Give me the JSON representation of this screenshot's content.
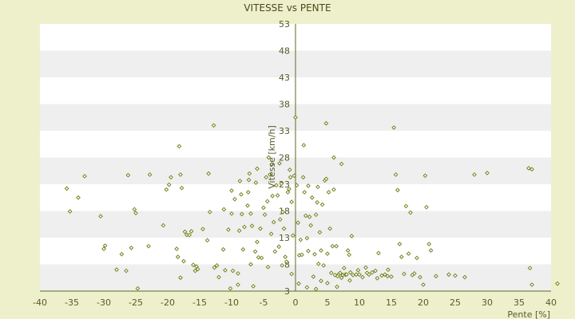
{
  "colors": {
    "page_background": "#eef0cc",
    "band_light": "#ffffff",
    "band_dark": "#efefef",
    "axis": "#5b6b1e",
    "marker_fill": "#ffffff",
    "marker_stroke": "#6b7a10",
    "text": "#4a4a1a"
  },
  "chart_data": {
    "type": "scatter",
    "title": "VITESSE vs PENTE",
    "xlabel": "Pente [%]",
    "ylabel": "Vitesse [km/h]",
    "xlim": [
      -40,
      40
    ],
    "ylim": [
      3,
      53
    ],
    "x_ticks": [
      -40,
      -35,
      -30,
      -25,
      -20,
      -15,
      -10,
      -5,
      0,
      5,
      10,
      15,
      20,
      25,
      30,
      35,
      40
    ],
    "y_ticks": [
      3,
      8,
      13,
      18,
      23,
      28,
      33,
      38,
      43,
      48,
      53
    ],
    "grid": "alternating horizontal bands",
    "legend": "none",
    "marker": "small diamond",
    "points": [
      [
        -35.8,
        22.2
      ],
      [
        -35.3,
        17.9
      ],
      [
        -34.0,
        20.5
      ],
      [
        -33.0,
        24.5
      ],
      [
        -30.5,
        17.0
      ],
      [
        -30.0,
        10.9
      ],
      [
        -29.8,
        11.5
      ],
      [
        -28.0,
        7.0
      ],
      [
        -27.2,
        9.9
      ],
      [
        -26.5,
        6.8
      ],
      [
        -26.2,
        24.7
      ],
      [
        -25.7,
        11.1
      ],
      [
        -25.2,
        18.3
      ],
      [
        -25.0,
        17.6
      ],
      [
        -24.7,
        3.5
      ],
      [
        -23.0,
        11.4
      ],
      [
        -22.8,
        24.8
      ],
      [
        -20.7,
        15.3
      ],
      [
        -20.2,
        22.0
      ],
      [
        -19.8,
        22.9
      ],
      [
        -19.5,
        24.3
      ],
      [
        -18.6,
        10.9
      ],
      [
        -18.4,
        9.4
      ],
      [
        -18.0,
        24.8
      ],
      [
        -18.2,
        30.1
      ],
      [
        -18.0,
        5.5
      ],
      [
        -17.8,
        22.3
      ],
      [
        -17.5,
        8.6
      ],
      [
        -17.3,
        14.1
      ],
      [
        -17.0,
        13.5
      ],
      [
        -16.6,
        13.5
      ],
      [
        -16.3,
        14.2
      ],
      [
        -16.0,
        7.9
      ],
      [
        -15.7,
        6.8
      ],
      [
        -15.5,
        7.6
      ],
      [
        -15.3,
        7.1
      ],
      [
        -14.5,
        14.6
      ],
      [
        -13.8,
        12.5
      ],
      [
        -13.6,
        25.0
      ],
      [
        -13.4,
        17.8
      ],
      [
        -12.8,
        34.0
      ],
      [
        -12.7,
        7.4
      ],
      [
        -12.3,
        7.8
      ],
      [
        -12.0,
        5.6
      ],
      [
        -11.3,
        10.8
      ],
      [
        -11.0,
        6.9
      ],
      [
        -10.5,
        14.5
      ],
      [
        -10.0,
        17.5
      ],
      [
        -9.8,
        6.8
      ],
      [
        -9.5,
        20.2
      ],
      [
        -9.0,
        6.3
      ],
      [
        -8.8,
        14.3
      ],
      [
        -8.5,
        21.1
      ],
      [
        -8.4,
        17.4
      ],
      [
        -8.0,
        15.0
      ],
      [
        -7.5,
        19.0
      ],
      [
        -7.0,
        8.0
      ],
      [
        -7.4,
        21.5
      ],
      [
        -7.3,
        23.8
      ],
      [
        -7.2,
        25.0
      ],
      [
        -7.0,
        17.5
      ],
      [
        -6.8,
        15.2
      ],
      [
        -6.6,
        3.9
      ],
      [
        -6.2,
        23.3
      ],
      [
        -6.0,
        12.2
      ],
      [
        -5.8,
        9.3
      ],
      [
        -5.5,
        14.7
      ],
      [
        -5.3,
        9.2
      ],
      [
        -5.0,
        18.6
      ],
      [
        -4.8,
        17.3
      ],
      [
        -4.6,
        24.3
      ],
      [
        -4.4,
        19.8
      ],
      [
        -4.2,
        28.0
      ],
      [
        -4.0,
        24.8
      ],
      [
        -3.8,
        13.7
      ],
      [
        -3.6,
        20.8
      ],
      [
        -3.4,
        15.9
      ],
      [
        -3.2,
        10.4
      ],
      [
        -3.0,
        22.8
      ],
      [
        -2.8,
        20.9
      ],
      [
        -2.6,
        11.3
      ],
      [
        -2.4,
        16.4
      ],
      [
        -2.2,
        23.1
      ],
      [
        -2.0,
        17.8
      ],
      [
        -1.8,
        14.7
      ],
      [
        -1.6,
        9.4
      ],
      [
        -1.4,
        8.5
      ],
      [
        -1.2,
        21.5
      ],
      [
        -1.0,
        22.1
      ],
      [
        -0.8,
        24.3
      ],
      [
        -0.6,
        19.7
      ],
      [
        -0.4,
        13.4
      ],
      [
        -0.2,
        24.6
      ],
      [
        0.2,
        22.8
      ],
      [
        0.4,
        15.8
      ],
      [
        0.6,
        9.7
      ],
      [
        0.8,
        12.6
      ],
      [
        1.0,
        9.8
      ],
      [
        1.2,
        24.3
      ],
      [
        1.4,
        21.5
      ],
      [
        1.6,
        17.1
      ],
      [
        1.8,
        12.9
      ],
      [
        2.0,
        10.5
      ],
      [
        2.2,
        16.9
      ],
      [
        2.4,
        15.3
      ],
      [
        2.6,
        20.5
      ],
      [
        2.8,
        5.7
      ],
      [
        3.0,
        9.9
      ],
      [
        3.2,
        17.3
      ],
      [
        3.4,
        19.6
      ],
      [
        3.6,
        8.1
      ],
      [
        3.8,
        14.0
      ],
      [
        4.0,
        10.6
      ],
      [
        4.2,
        19.2
      ],
      [
        4.4,
        7.8
      ],
      [
        4.6,
        23.7
      ],
      [
        4.8,
        24.0
      ],
      [
        5.0,
        10.0
      ],
      [
        5.2,
        21.5
      ],
      [
        5.4,
        14.7
      ],
      [
        5.6,
        6.4
      ],
      [
        5.8,
        11.4
      ],
      [
        6.0,
        22.0
      ],
      [
        6.2,
        6.0
      ],
      [
        6.4,
        11.4
      ],
      [
        6.6,
        5.8
      ],
      [
        6.8,
        6.2
      ],
      [
        7.0,
        6.4
      ],
      [
        7.2,
        5.5
      ],
      [
        7.4,
        6.0
      ],
      [
        7.6,
        7.3
      ],
      [
        7.8,
        6.1
      ],
      [
        8.0,
        6.1
      ],
      [
        8.2,
        10.6
      ],
      [
        8.4,
        9.8
      ],
      [
        8.6,
        6.5
      ],
      [
        8.8,
        13.3
      ],
      [
        9.0,
        6.0
      ],
      [
        9.5,
        6.1
      ],
      [
        10.0,
        6.1
      ],
      [
        10.5,
        5.6
      ],
      [
        11.0,
        7.4
      ],
      [
        11.5,
        6.1
      ],
      [
        12.0,
        6.5
      ],
      [
        12.5,
        6.8
      ],
      [
        13.0,
        10.1
      ],
      [
        13.5,
        5.9
      ],
      [
        14.0,
        6.1
      ],
      [
        14.5,
        7.0
      ],
      [
        15.0,
        5.7
      ],
      [
        15.4,
        33.6
      ],
      [
        15.7,
        24.8
      ],
      [
        16.0,
        21.9
      ],
      [
        16.3,
        11.8
      ],
      [
        16.6,
        9.4
      ],
      [
        17.0,
        6.2
      ],
      [
        17.3,
        18.9
      ],
      [
        17.7,
        10.0
      ],
      [
        18.0,
        17.7
      ],
      [
        18.3,
        6.0
      ],
      [
        18.6,
        6.3
      ],
      [
        19.0,
        9.2
      ],
      [
        19.5,
        5.6
      ],
      [
        20.0,
        4.2
      ],
      [
        20.3,
        24.6
      ],
      [
        20.5,
        18.7
      ],
      [
        20.9,
        11.8
      ],
      [
        21.2,
        10.6
      ],
      [
        22.0,
        5.8
      ],
      [
        24.0,
        6.1
      ],
      [
        25.0,
        5.9
      ],
      [
        26.5,
        5.6
      ],
      [
        28.0,
        24.8
      ],
      [
        30.0,
        25.1
      ],
      [
        36.5,
        26.0
      ],
      [
        37.0,
        25.8
      ],
      [
        36.7,
        7.3
      ],
      [
        37.0,
        4.2
      ],
      [
        41.0,
        4.4
      ],
      [
        0.0,
        35.5
      ],
      [
        1.3,
        30.3
      ],
      [
        4.8,
        34.4
      ],
      [
        6.0,
        28.0
      ],
      [
        7.2,
        26.8
      ],
      [
        -3.7,
        26.7
      ],
      [
        -2.5,
        26.9
      ],
      [
        -0.9,
        25.7
      ],
      [
        2.0,
        22.7
      ],
      [
        3.5,
        22.5
      ],
      [
        -6.0,
        25.9
      ],
      [
        -8.7,
        23.6
      ],
      [
        -10.0,
        21.8
      ],
      [
        -11.2,
        18.3
      ],
      [
        -8.2,
        10.8
      ],
      [
        -9.0,
        4.2
      ],
      [
        -10.2,
        3.5
      ],
      [
        -6.3,
        10.4
      ],
      [
        -4.3,
        7.5
      ],
      [
        -2.1,
        7.8
      ],
      [
        -0.6,
        6.2
      ],
      [
        0.5,
        4.4
      ],
      [
        1.8,
        3.7
      ],
      [
        3.2,
        3.4
      ],
      [
        4.0,
        4.9
      ],
      [
        5.0,
        4.5
      ],
      [
        6.5,
        3.8
      ],
      [
        8.5,
        5.0
      ],
      [
        9.8,
        6.9
      ],
      [
        11.2,
        6.4
      ],
      [
        12.8,
        5.4
      ],
      [
        14.4,
        5.8
      ]
    ]
  }
}
